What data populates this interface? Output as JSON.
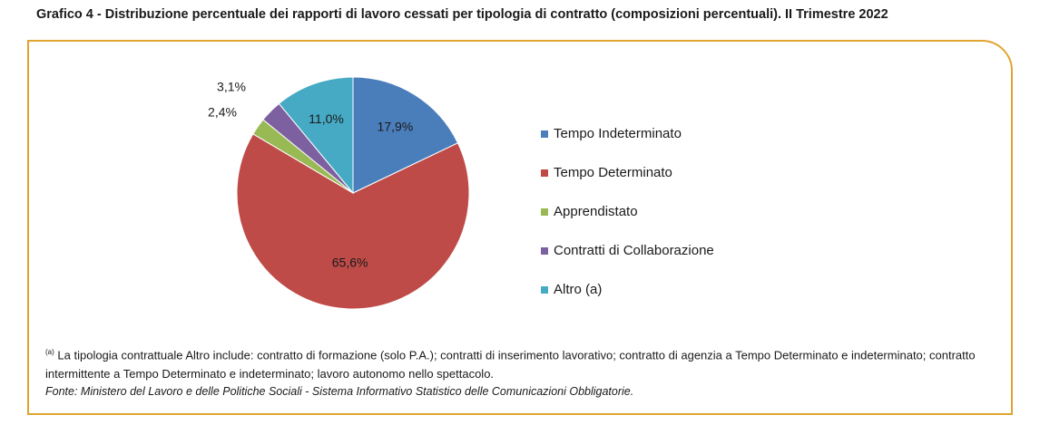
{
  "title": "Grafico 4 - Distribuzione percentuale dei rapporti di lavoro cessati per tipologia di contratto (composizioni percentuali). II Trimestre 2022",
  "chart_data": {
    "type": "pie",
    "title": "Grafico 4 - Distribuzione percentuale dei rapporti di lavoro cessati per tipologia di contratto (composizioni percentuali). II Trimestre 2022",
    "categories": [
      "Tempo Indeterminato",
      "Tempo Determinato",
      "Apprendistato",
      "Contratti di Collaborazione",
      "Altro (a)"
    ],
    "values": [
      17.9,
      65.6,
      2.4,
      3.1,
      11.0
    ],
    "labels": [
      "17,9%",
      "65,6%",
      "2,4%",
      "3,1%",
      "11,0%"
    ],
    "colors": [
      "#4a7ebb",
      "#be4b48",
      "#98b954",
      "#7d60a0",
      "#46aac4"
    ],
    "legend_position": "right"
  },
  "footnote": {
    "marker": "(a)",
    "text": "La tipologia contrattuale Altro include: contratto di formazione (solo P.A.); contratti di inserimento lavorativo; contratto di agenzia a Tempo Determinato e indeterminato; contratto intermittente a Tempo Determinato e indeterminato; lavoro autonomo nello spettacolo."
  },
  "source": "Fonte: Ministero del Lavoro e delle Politiche Sociali - Sistema Informativo Statistico delle Comunicazioni Obbligatorie."
}
